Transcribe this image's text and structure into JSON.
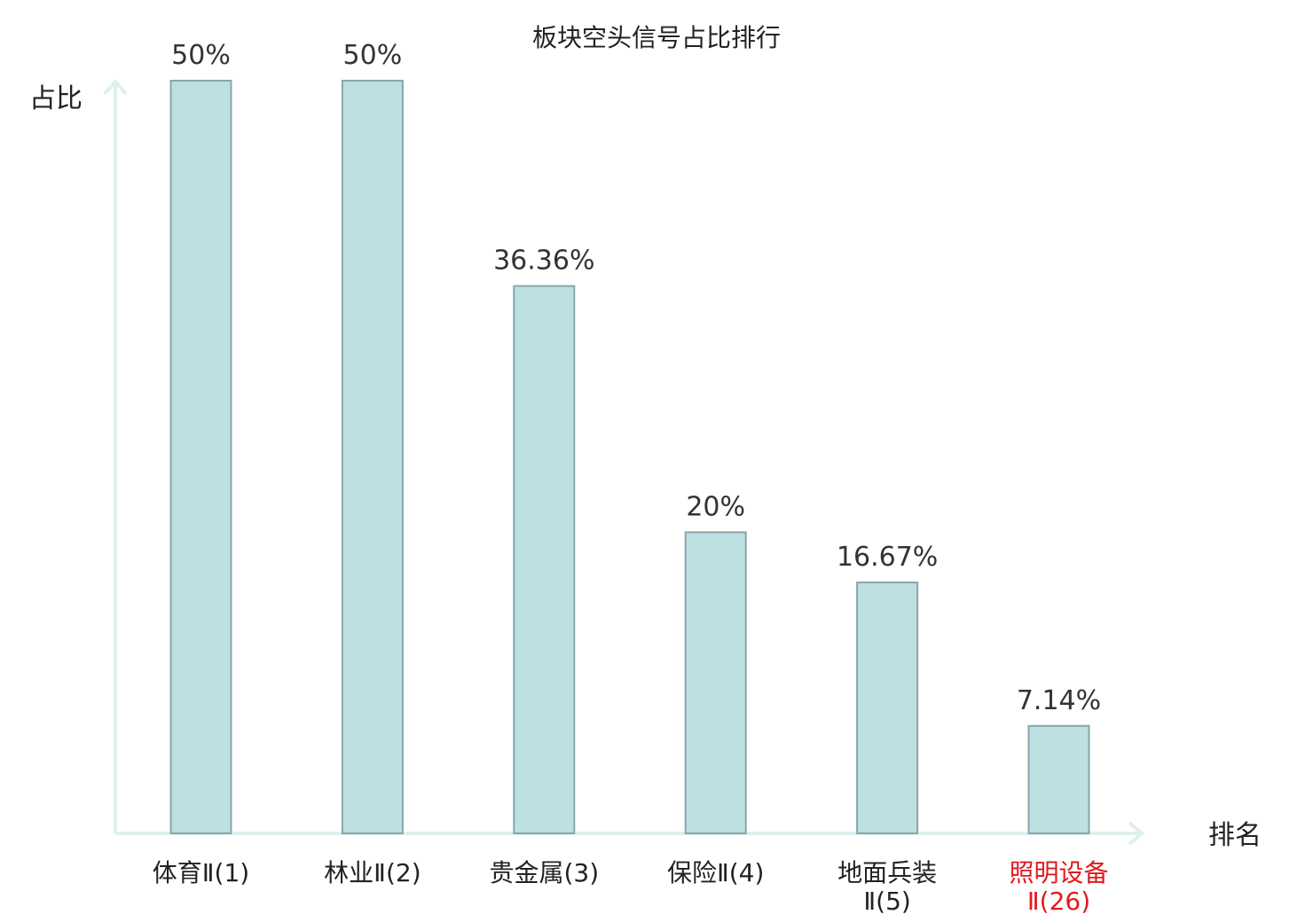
{
  "chart_data": {
    "type": "bar",
    "title": "板块空头信号占比排行",
    "ylabel": "占比",
    "xlabel": "排名",
    "ylim": [
      0,
      50
    ],
    "grid": false,
    "legend": "none",
    "bar_color": "#bde0e3",
    "bar_edge_color": "#86a8ab",
    "axis_color": "#dff0ee",
    "highlight_color": "#e0191d",
    "categories": [
      {
        "lines": [
          "体育Ⅱ(1)"
        ],
        "highlight": false
      },
      {
        "lines": [
          "林业Ⅱ(2)"
        ],
        "highlight": false
      },
      {
        "lines": [
          "贵金属(3)"
        ],
        "highlight": false
      },
      {
        "lines": [
          "保险Ⅱ(4)"
        ],
        "highlight": false
      },
      {
        "lines": [
          "地面兵装",
          "Ⅱ(5)"
        ],
        "highlight": false
      },
      {
        "lines": [
          "照明设备",
          "Ⅱ(26)"
        ],
        "highlight": true
      }
    ],
    "values": [
      50,
      50,
      36.36,
      20,
      16.67,
      7.14
    ],
    "value_labels": [
      "50%",
      "50%",
      "36.36%",
      "20%",
      "16.67%",
      "7.14%"
    ]
  }
}
